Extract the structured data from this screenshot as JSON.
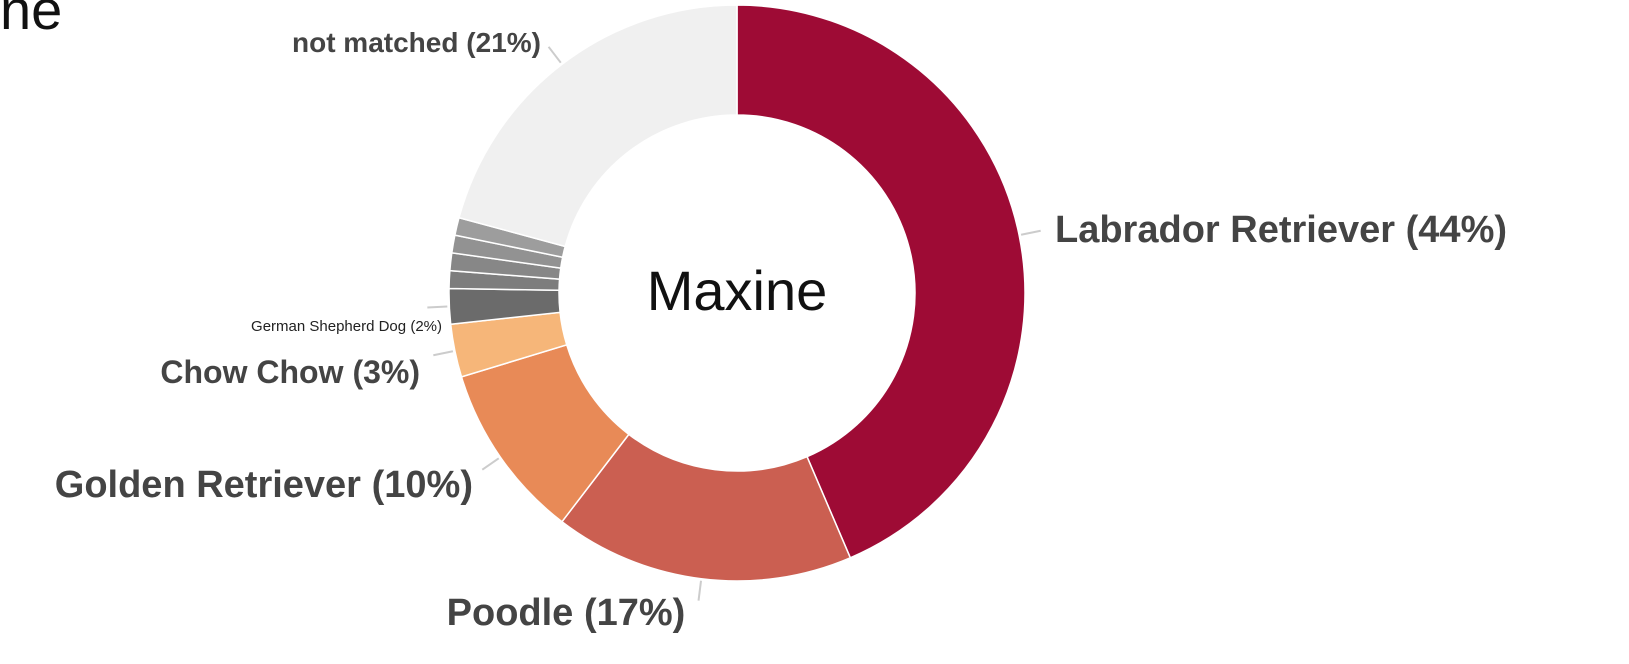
{
  "heading": "ne",
  "chart_data": {
    "type": "donut",
    "center_label": "Maxine",
    "categories": [
      "Labrador Retriever",
      "Poodle",
      "Golden Retriever",
      "Chow Chow",
      "German Shepherd Dog",
      null,
      null,
      null,
      null,
      "not matched"
    ],
    "values": [
      44,
      17,
      10,
      3,
      2,
      1,
      1,
      1,
      1,
      21
    ],
    "value_labels": [
      "(44%)",
      "(17%)",
      "(10%)",
      "(3%)",
      "(2%)",
      null,
      null,
      null,
      null,
      "(21%)"
    ],
    "colors": [
      "#9e0b35",
      "#cb5f51",
      "#e88a57",
      "#f6b679",
      "#6b6b6b",
      "#7d7d7d",
      "#878787",
      "#929292",
      "#9d9d9d",
      "#f0f0f0"
    ]
  }
}
